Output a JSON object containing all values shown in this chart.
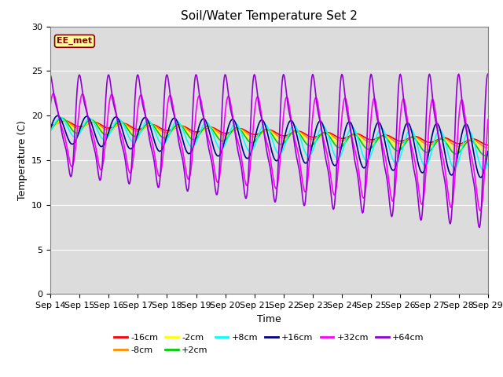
{
  "title": "Soil/Water Temperature Set 2",
  "xlabel": "Time",
  "ylabel": "Temperature (C)",
  "ylim": [
    0,
    30
  ],
  "xlim": [
    0,
    15
  ],
  "x_tick_labels": [
    "Sep 14",
    "Sep 15",
    "Sep 16",
    "Sep 17",
    "Sep 18",
    "Sep 19",
    "Sep 20",
    "Sep 21",
    "Sep 22",
    "Sep 23",
    "Sep 24",
    "Sep 25",
    "Sep 26",
    "Sep 27",
    "Sep 28",
    "Sep 29"
  ],
  "annotation_text": "EE_met",
  "annotation_color": "#8B0000",
  "annotation_bg": "#FFFF99",
  "bg_color": "#DCDCDC",
  "series": [
    {
      "label": "-16cm",
      "color": "#FF0000"
    },
    {
      "label": "-8cm",
      "color": "#FF8C00"
    },
    {
      "label": "-2cm",
      "color": "#FFFF00"
    },
    {
      "label": "+2cm",
      "color": "#00CC00"
    },
    {
      "label": "+8cm",
      "color": "#00FFFF"
    },
    {
      "label": "+16cm",
      "color": "#00008B"
    },
    {
      "label": "+32cm",
      "color": "#FF00FF"
    },
    {
      "label": "+64cm",
      "color": "#9400D3"
    }
  ],
  "title_fontsize": 11,
  "axis_fontsize": 9,
  "tick_fontsize": 8
}
